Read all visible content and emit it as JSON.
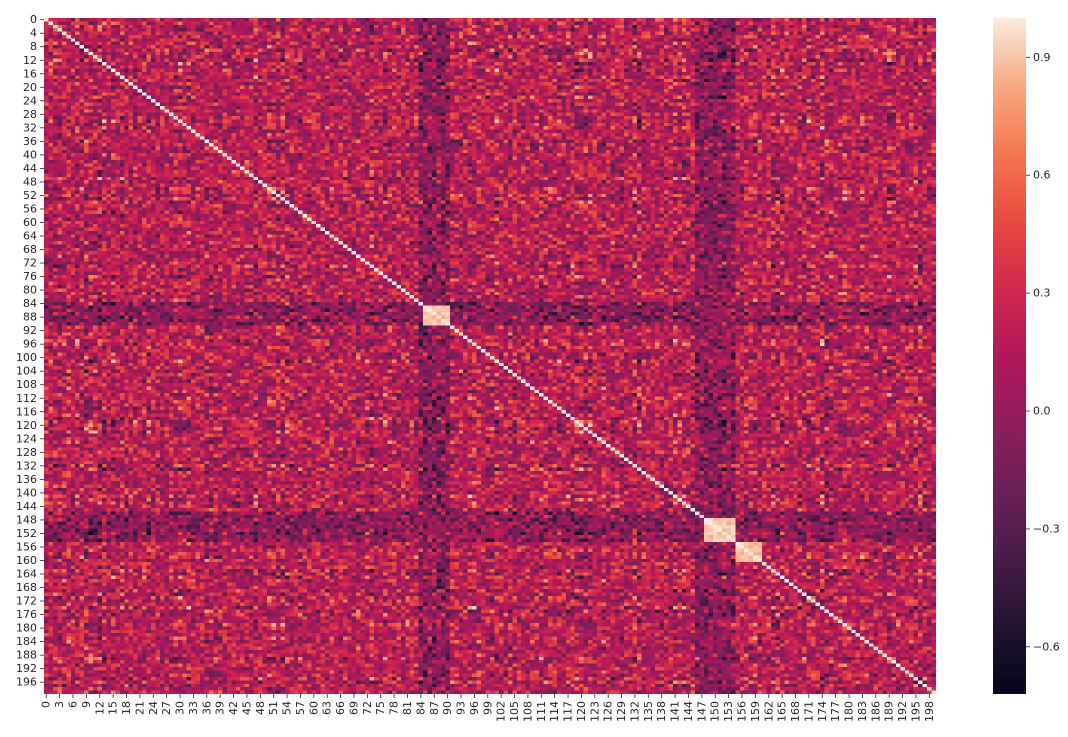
{
  "chart_data": {
    "type": "heatmap",
    "title": "",
    "xlabel": "",
    "ylabel": "",
    "matrix_size": 200,
    "diagonal_value": 1.0,
    "value_range": [
      -0.72,
      1.0
    ],
    "colormap": "rocket",
    "x_tick_labels": [
      "0",
      "3",
      "6",
      "9",
      "12",
      "15",
      "18",
      "21",
      "24",
      "27",
      "30",
      "33",
      "36",
      "39",
      "42",
      "45",
      "48",
      "51",
      "54",
      "57",
      "60",
      "63",
      "66",
      "69",
      "72",
      "75",
      "78",
      "81",
      "84",
      "87",
      "90",
      "93",
      "96",
      "99",
      "102",
      "105",
      "108",
      "111",
      "114",
      "117",
      "120",
      "123",
      "126",
      "129",
      "132",
      "135",
      "138",
      "141",
      "144",
      "147",
      "150",
      "153",
      "156",
      "159",
      "162",
      "165",
      "168",
      "171",
      "174",
      "177",
      "180",
      "183",
      "186",
      "189",
      "192",
      "195",
      "198"
    ],
    "y_tick_labels": [
      "0",
      "4",
      "8",
      "12",
      "16",
      "20",
      "24",
      "28",
      "32",
      "36",
      "40",
      "44",
      "48",
      "52",
      "56",
      "60",
      "64",
      "68",
      "72",
      "76",
      "80",
      "84",
      "88",
      "92",
      "96",
      "100",
      "104",
      "108",
      "112",
      "116",
      "120",
      "124",
      "128",
      "132",
      "136",
      "140",
      "144",
      "148",
      "152",
      "156",
      "160",
      "164",
      "168",
      "172",
      "176",
      "180",
      "184",
      "188",
      "192",
      "196"
    ],
    "colorbar": {
      "ticks": [
        0.9,
        0.6,
        0.3,
        0.0,
        -0.3,
        -0.6
      ],
      "tick_labels": [
        "0.9",
        "0.6",
        "0.3",
        "0.0",
        "−0.3",
        "−0.6"
      ]
    },
    "notable_features": {
      "bright_blocks": [
        {
          "rows": [
            85,
            90
          ],
          "cols": [
            85,
            90
          ]
        },
        {
          "rows": [
            148,
            154
          ],
          "cols": [
            148,
            154
          ]
        },
        {
          "rows": [
            155,
            160
          ],
          "cols": [
            155,
            160
          ]
        }
      ],
      "dark_bands": [
        {
          "axis": "column",
          "range": [
            85,
            90
          ]
        },
        {
          "axis": "column",
          "range": [
            146,
            154
          ]
        },
        {
          "axis": "row",
          "range": [
            84,
            90
          ]
        },
        {
          "axis": "row",
          "range": [
            146,
            154
          ]
        }
      ]
    }
  }
}
